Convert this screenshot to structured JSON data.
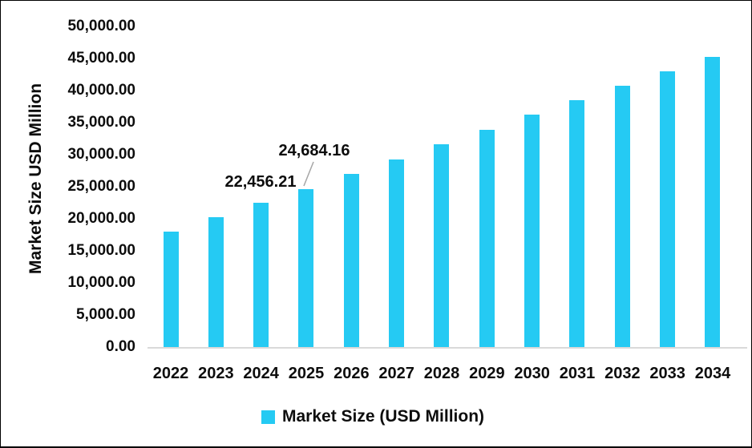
{
  "chart_data": {
    "type": "bar",
    "title": "",
    "categories": [
      "2022",
      "2023",
      "2024",
      "2025",
      "2026",
      "2027",
      "2028",
      "2029",
      "2030",
      "2031",
      "2032",
      "2033",
      "2034"
    ],
    "series": [
      {
        "name": "Market Size (USD Million)",
        "values": [
          18000,
          20300,
          22456.21,
          24684.16,
          27000,
          29300,
          31600,
          33900,
          36200,
          38450,
          40700,
          42950,
          45200
        ]
      }
    ],
    "labeled_points": [
      {
        "category": "2024",
        "value": 22456.21,
        "label": "22,456.21"
      },
      {
        "category": "2025",
        "value": 24684.16,
        "label": "24,684.16",
        "leader_line": true
      }
    ],
    "xlabel": "",
    "ylabel": "Market Size USD Million",
    "ylim": [
      0,
      50000
    ],
    "ytick_step": 5000,
    "ytick_labels": [
      "50,000.00",
      "45,000.00",
      "40,000.00",
      "35,000.00",
      "30,000.00",
      "25,000.00",
      "20,000.00",
      "15,000.00",
      "10,000.00",
      "5,000.00",
      "0.00"
    ],
    "grid": false,
    "legend_position": "bottom",
    "legend_label": "Market Size (USD Million)",
    "colors": {
      "bar": "#25CAF3",
      "axis_line": "#D9D9D9",
      "leader_line": "#A6A6A6",
      "text": "#0d0d0d"
    }
  }
}
